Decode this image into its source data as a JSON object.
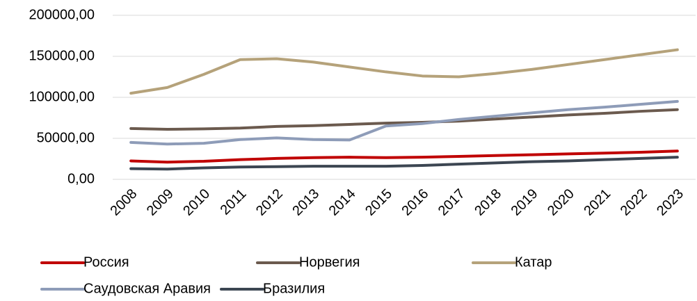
{
  "chart_data": {
    "type": "line",
    "categories": [
      "2008",
      "2009",
      "2010",
      "2011",
      "2012",
      "2013",
      "2014",
      "2015",
      "2016",
      "2017",
      "2018",
      "2019",
      "2020",
      "2021",
      "2022",
      "2023"
    ],
    "series": [
      {
        "name": "Россия",
        "color": "#c00000",
        "values": [
          22500,
          21000,
          22000,
          24000,
          25500,
          26500,
          27000,
          26500,
          27000,
          28000,
          29000,
          30000,
          31000,
          32000,
          33000,
          34500
        ]
      },
      {
        "name": "Норвегия",
        "color": "#6b5a4e",
        "values": [
          62000,
          61000,
          61500,
          62500,
          64500,
          65500,
          67000,
          68500,
          69500,
          71000,
          73500,
          76000,
          78500,
          80500,
          83000,
          85000
        ]
      },
      {
        "name": "Катар",
        "color": "#b5a27a",
        "values": [
          105000,
          112000,
          128000,
          146000,
          147000,
          143000,
          137000,
          131000,
          126000,
          125000,
          129000,
          134000,
          140000,
          146000,
          152000,
          158000
        ]
      },
      {
        "name": "Саудовская Аравия",
        "color": "#8e9cb8",
        "values": [
          45000,
          43000,
          44000,
          48500,
          50500,
          48500,
          48000,
          65000,
          68000,
          73000,
          77000,
          81000,
          85000,
          88000,
          91500,
          95000
        ]
      },
      {
        "name": "Бразилия",
        "color": "#3c4652",
        "values": [
          13000,
          12500,
          14000,
          15000,
          15500,
          16000,
          16000,
          16000,
          17000,
          18500,
          20000,
          21500,
          22500,
          24000,
          25500,
          27000
        ]
      }
    ],
    "ylim": [
      0,
      200000
    ],
    "yticks": [
      {
        "value": 0,
        "label": "0,00"
      },
      {
        "value": 50000,
        "label": "50000,00"
      },
      {
        "value": 100000,
        "label": "100000,00"
      },
      {
        "value": 150000,
        "label": "150000,00"
      },
      {
        "value": 200000,
        "label": "200000,00"
      }
    ],
    "grid": true,
    "legend": "bottom"
  }
}
